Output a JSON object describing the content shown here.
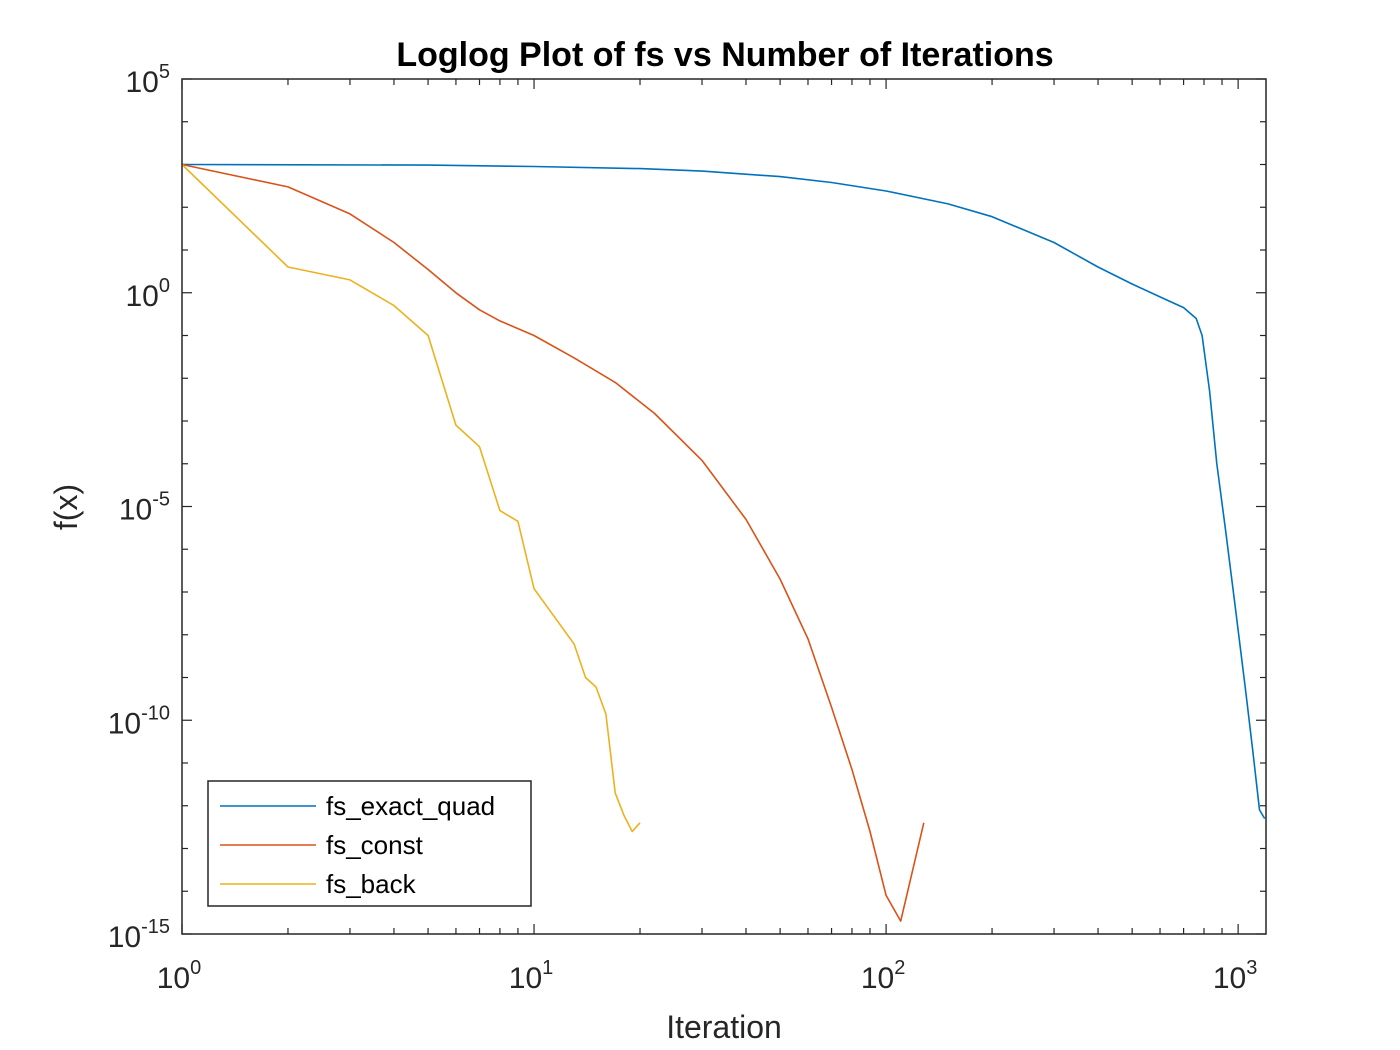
{
  "chart_data": {
    "type": "line",
    "scale": "loglog",
    "title": "Loglog Plot of fs vs  Number of Iterations",
    "xlabel": "Iteration",
    "ylabel": "f(x)",
    "xlim": [
      1,
      1200
    ],
    "ylim": [
      1e-15,
      100000.0
    ],
    "x_ticks": [
      {
        "value": 1,
        "base": "10",
        "exp": "0"
      },
      {
        "value": 10,
        "base": "10",
        "exp": "1"
      },
      {
        "value": 100,
        "base": "10",
        "exp": "2"
      },
      {
        "value": 1000,
        "base": "10",
        "exp": "3"
      }
    ],
    "y_ticks": [
      {
        "value": 100000.0,
        "base": "10",
        "exp": "5"
      },
      {
        "value": 1,
        "base": "10",
        "exp": "0"
      },
      {
        "value": 1e-05,
        "base": "10",
        "exp": "-5"
      },
      {
        "value": 1e-10,
        "base": "10",
        "exp": "-10"
      },
      {
        "value": 1e-15,
        "base": "10",
        "exp": "-15"
      }
    ],
    "legend_location": "bottom-left",
    "series": [
      {
        "name": "fs_exact_quad",
        "color": "#0072BD",
        "points": [
          [
            1,
            1000
          ],
          [
            5,
            970
          ],
          [
            10,
            900
          ],
          [
            20,
            800
          ],
          [
            30,
            700
          ],
          [
            50,
            520
          ],
          [
            70,
            380
          ],
          [
            100,
            240
          ],
          [
            150,
            120
          ],
          [
            200,
            60
          ],
          [
            300,
            15
          ],
          [
            400,
            4
          ],
          [
            500,
            1.6
          ],
          [
            600,
            0.8
          ],
          [
            700,
            0.45
          ],
          [
            760,
            0.25
          ],
          [
            790,
            0.1
          ],
          [
            830,
            0.005
          ],
          [
            870,
            0.0001
          ],
          [
            920,
            3e-06
          ],
          [
            980,
            5e-08
          ],
          [
            1050,
            5e-10
          ],
          [
            1100,
            2e-11
          ],
          [
            1150,
            8e-13
          ],
          [
            1190,
            5e-13
          ]
        ]
      },
      {
        "name": "fs_const",
        "color": "#D95319",
        "points": [
          [
            1,
            1000
          ],
          [
            2,
            300
          ],
          [
            3,
            70
          ],
          [
            4,
            15
          ],
          [
            5,
            3.5
          ],
          [
            6,
            1
          ],
          [
            7,
            0.4
          ],
          [
            8,
            0.22
          ],
          [
            10,
            0.1
          ],
          [
            13,
            0.03
          ],
          [
            17,
            0.008
          ],
          [
            22,
            0.0015
          ],
          [
            30,
            0.00012
          ],
          [
            40,
            5e-06
          ],
          [
            50,
            2e-07
          ],
          [
            60,
            8e-09
          ],
          [
            70,
            2e-10
          ],
          [
            80,
            7e-12
          ],
          [
            90,
            2.5e-13
          ],
          [
            100,
            8e-15
          ],
          [
            110,
            2e-15
          ],
          [
            128,
            4e-13
          ]
        ]
      },
      {
        "name": "fs_back",
        "color": "#EDB120",
        "points": [
          [
            1,
            1000
          ],
          [
            2,
            4
          ],
          [
            3,
            2
          ],
          [
            4,
            0.5
          ],
          [
            5,
            0.1
          ],
          [
            6,
            0.0008
          ],
          [
            7,
            0.00025
          ],
          [
            8,
            8e-06
          ],
          [
            9,
            4.5e-06
          ],
          [
            10,
            1.2e-07
          ],
          [
            12,
            1.5e-08
          ],
          [
            13,
            6e-09
          ],
          [
            14,
            1e-09
          ],
          [
            15,
            6e-10
          ],
          [
            16,
            1.4e-10
          ],
          [
            17,
            2e-12
          ],
          [
            18,
            6e-13
          ],
          [
            19,
            2.5e-13
          ],
          [
            20,
            4e-13
          ]
        ]
      }
    ]
  }
}
